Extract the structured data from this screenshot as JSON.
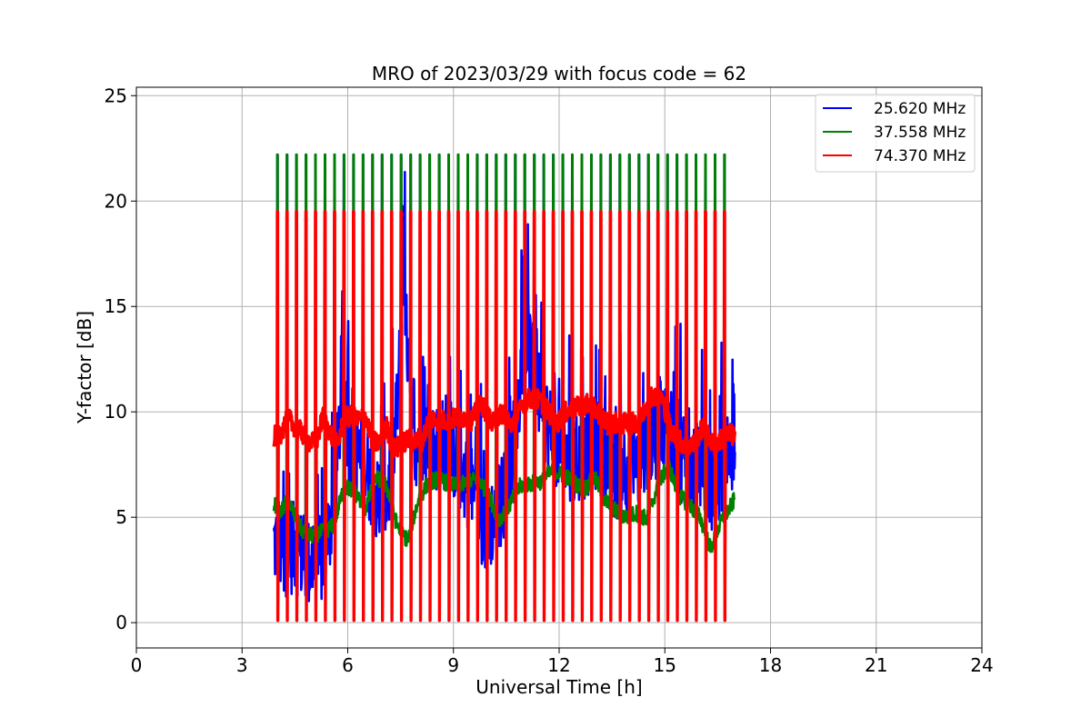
{
  "chart_data": {
    "type": "line",
    "title": "MRO of 2023/03/29 with focus code = 62",
    "xlabel": "Universal Time [h]",
    "ylabel": "Y-factor [dB]",
    "xlim": [
      0,
      24
    ],
    "ylim": [
      -1.2,
      25.4
    ],
    "xticks": [
      0,
      3,
      6,
      9,
      12,
      15,
      18,
      21,
      24
    ],
    "yticks": [
      0,
      5,
      10,
      15,
      20,
      25
    ],
    "grid": true,
    "legend_position": "top-right",
    "series": [
      {
        "name": "25.620 MHz",
        "color": "#0000ff",
        "x": [
          3.9,
          4.2,
          4.5,
          4.8,
          5.0,
          5.3,
          5.5,
          5.7,
          5.85,
          6.0,
          6.3,
          6.6,
          6.9,
          7.1,
          7.3,
          7.5,
          7.6,
          7.75,
          7.9,
          8.1,
          8.4,
          8.7,
          9.0,
          9.3,
          9.6,
          9.9,
          10.2,
          10.5,
          10.8,
          11.0,
          11.2,
          11.5,
          11.8,
          12.1,
          12.4,
          12.7,
          13.0,
          13.3,
          13.6,
          13.9,
          14.2,
          14.5,
          14.8,
          15.1,
          15.4,
          15.7,
          16.0,
          16.3,
          16.6,
          16.9,
          17.0
        ],
        "y": [
          3.8,
          3.3,
          3.6,
          2.9,
          2.7,
          3.0,
          4.5,
          7.5,
          11.5,
          9.0,
          7.8,
          7.0,
          5.5,
          6.0,
          7.5,
          13.0,
          16.0,
          10.5,
          8.5,
          9.0,
          8.2,
          8.5,
          8.0,
          7.0,
          6.0,
          4.5,
          5.0,
          6.5,
          9.5,
          14.0,
          12.5,
          10.0,
          9.0,
          8.0,
          7.5,
          8.0,
          8.5,
          8.0,
          7.0,
          7.5,
          7.0,
          8.5,
          9.0,
          9.5,
          8.0,
          7.0,
          7.5,
          6.5,
          7.0,
          7.5,
          6.8
        ]
      },
      {
        "name": "37.558 MHz",
        "color": "#008000",
        "x": [
          3.9,
          4.1,
          4.3,
          4.5,
          4.7,
          4.9,
          5.1,
          5.3,
          5.6,
          5.9,
          6.2,
          6.5,
          6.8,
          7.1,
          7.4,
          7.7,
          8.0,
          8.3,
          8.6,
          9.0,
          9.4,
          9.7,
          10.0,
          10.3,
          10.6,
          10.9,
          11.2,
          11.5,
          11.8,
          12.1,
          12.4,
          12.7,
          13.0,
          13.3,
          13.6,
          13.9,
          14.2,
          14.5,
          14.8,
          15.1,
          15.4,
          15.7,
          16.0,
          16.3,
          16.6,
          16.9,
          17.0
        ],
        "y": [
          5.7,
          5.2,
          5.9,
          5.0,
          4.4,
          4.1,
          4.2,
          4.3,
          4.6,
          6.5,
          6.2,
          5.4,
          6.9,
          6.5,
          4.6,
          3.9,
          5.8,
          6.7,
          6.8,
          6.5,
          6.6,
          6.9,
          6.0,
          4.9,
          5.6,
          6.5,
          6.6,
          6.7,
          7.2,
          7.0,
          6.7,
          6.3,
          6.9,
          5.8,
          5.3,
          5.0,
          5.2,
          4.9,
          6.5,
          7.5,
          6.0,
          5.6,
          5.0,
          3.5,
          4.8,
          5.6,
          5.9
        ]
      },
      {
        "name": "74.370 MHz",
        "color": "#ff0000",
        "x": [
          3.9,
          4.1,
          4.3,
          4.5,
          4.7,
          4.9,
          5.1,
          5.3,
          5.5,
          5.7,
          5.9,
          6.1,
          6.3,
          6.5,
          6.7,
          6.9,
          7.1,
          7.3,
          7.5,
          7.7,
          7.9,
          8.1,
          8.3,
          8.6,
          8.9,
          9.2,
          9.5,
          9.8,
          10.1,
          10.4,
          10.7,
          11.0,
          11.3,
          11.6,
          11.9,
          12.2,
          12.5,
          12.8,
          13.1,
          13.4,
          13.7,
          14.0,
          14.3,
          14.6,
          14.9,
          15.2,
          15.5,
          15.8,
          16.1,
          16.4,
          16.7,
          16.9,
          17.0
        ],
        "y": [
          8.8,
          9.0,
          9.7,
          9.3,
          9.0,
          8.6,
          8.5,
          9.8,
          9.0,
          8.4,
          9.7,
          9.8,
          9.6,
          9.8,
          8.6,
          8.5,
          9.3,
          8.2,
          8.4,
          8.7,
          8.6,
          8.5,
          9.7,
          9.6,
          9.6,
          9.8,
          9.6,
          10.4,
          9.4,
          10.0,
          9.3,
          10.5,
          10.7,
          10.3,
          9.4,
          10.0,
          10.2,
          10.4,
          10.0,
          9.4,
          9.5,
          9.4,
          9.6,
          10.8,
          10.7,
          9.0,
          8.5,
          8.4,
          9.3,
          8.3,
          8.9,
          8.9,
          8.8
        ]
      }
    ],
    "calibration_spikes": {
      "x_start": 4.0,
      "x_end": 16.8,
      "interval_hours": 0.27,
      "blue_peak": 22.2,
      "green_peak": 22.2,
      "red_peak": 19.5,
      "trough": 0.1
    }
  }
}
